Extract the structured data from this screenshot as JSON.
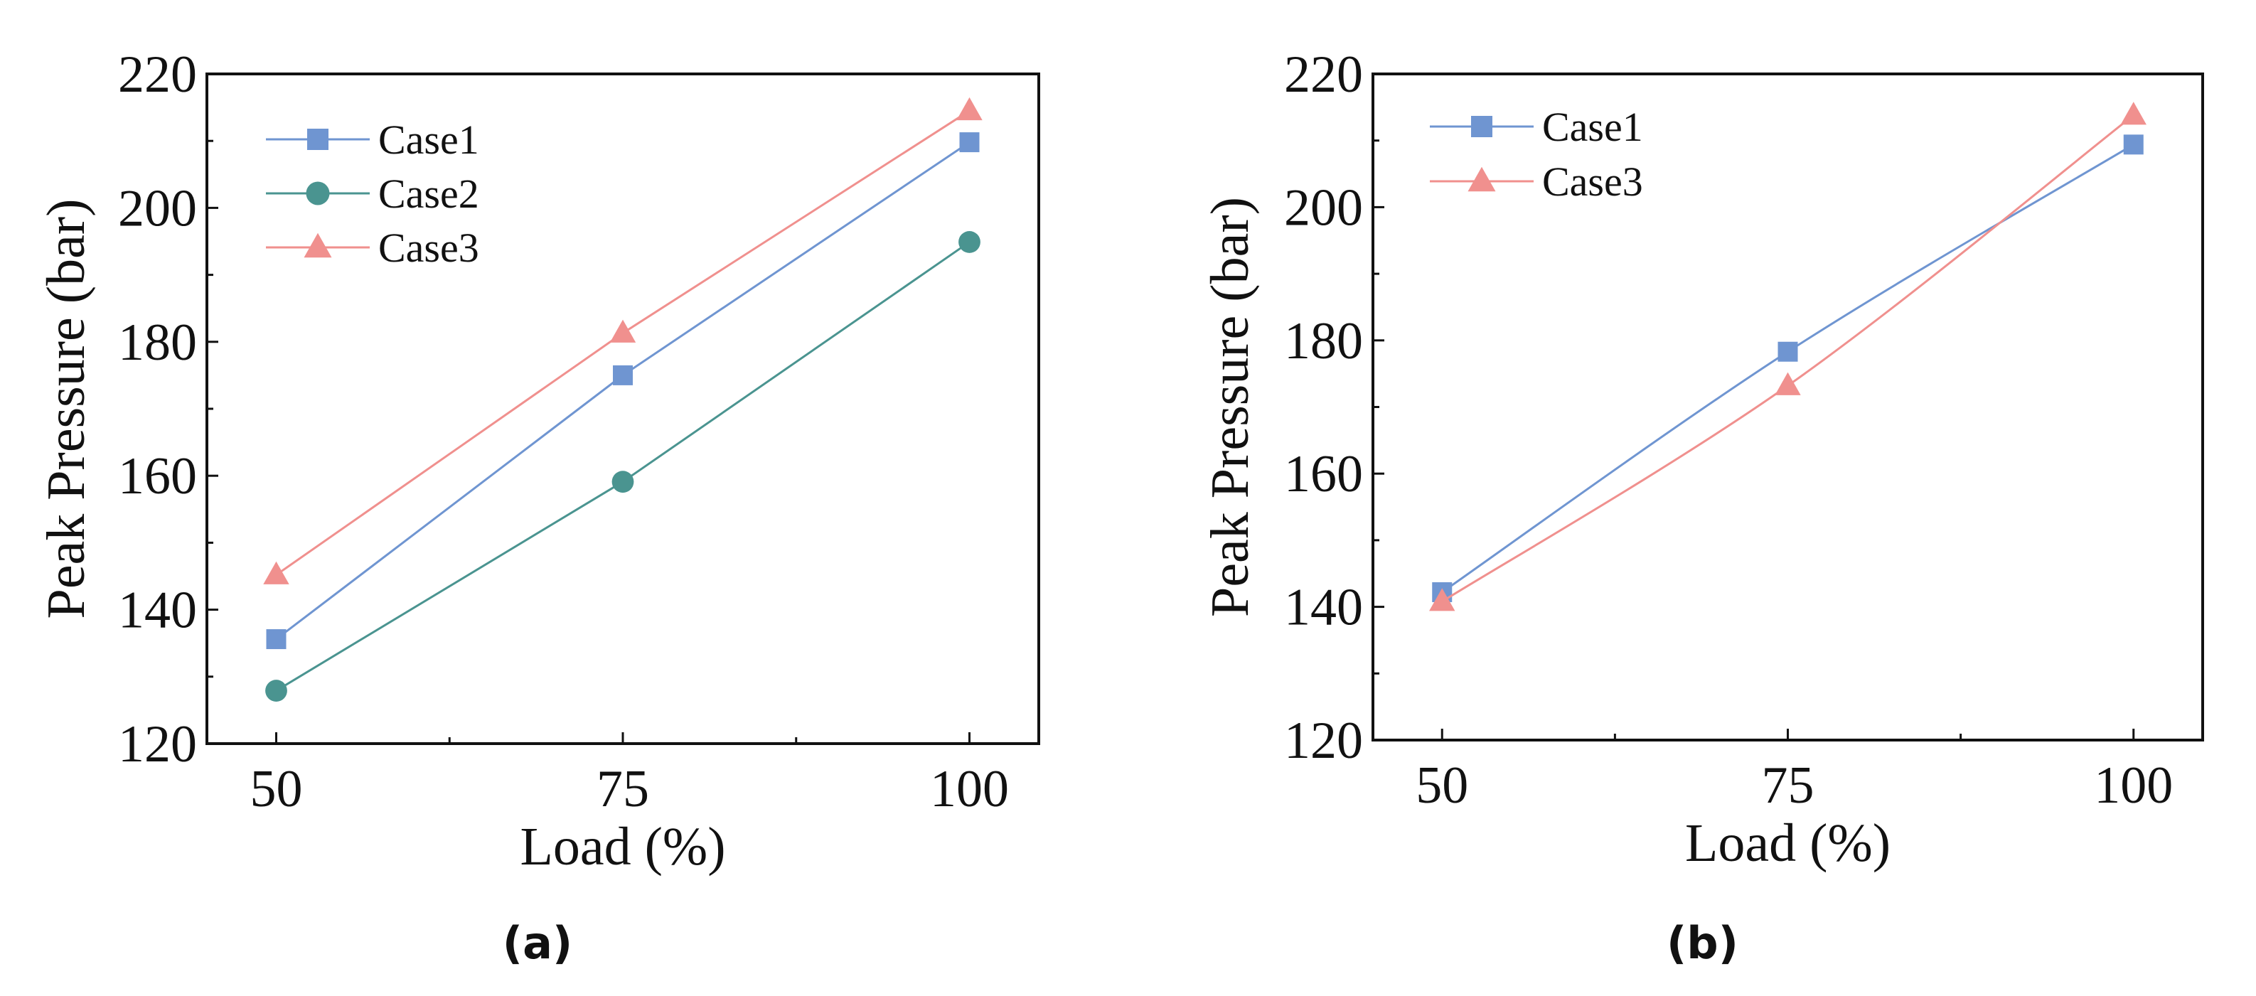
{
  "chart_data": [
    {
      "type": "line",
      "panel_label": "(a)",
      "xlabel": "Load (%)",
      "ylabel": "Peak Pressure (bar)",
      "x": [
        50,
        75,
        100
      ],
      "x_ticks": [
        "50",
        "75",
        "100"
      ],
      "y_ticks": [
        "120",
        "140",
        "160",
        "180",
        "200",
        "220"
      ],
      "xlim": [
        45,
        105
      ],
      "ylim": [
        120,
        220
      ],
      "legend_position": "top-left",
      "smooth": false,
      "series": [
        {
          "name": "Case1",
          "values": [
            135.6,
            175.0,
            209.8
          ],
          "color": "#6f95d1",
          "marker": "square"
        },
        {
          "name": "Case2",
          "values": [
            127.9,
            159.1,
            194.9
          ],
          "color": "#4a9490",
          "marker": "circle"
        },
        {
          "name": "Case3",
          "values": [
            145.2,
            181.3,
            214.5
          ],
          "color": "#f0908e",
          "marker": "triangle"
        }
      ]
    },
    {
      "type": "line",
      "panel_label": "(b)",
      "xlabel": "Load (%)",
      "ylabel": "Peak Pressure (bar)",
      "x": [
        50,
        75,
        100
      ],
      "x_ticks": [
        "50",
        "75",
        "100"
      ],
      "y_ticks": [
        "120",
        "140",
        "160",
        "180",
        "200",
        "220"
      ],
      "xlim": [
        45,
        105
      ],
      "ylim": [
        120,
        220
      ],
      "legend_position": "top-left",
      "smooth": true,
      "series": [
        {
          "name": "Case1",
          "values": [
            142.2,
            178.3,
            209.4
          ],
          "color": "#6f95d1",
          "marker": "square"
        },
        {
          "name": "Case3",
          "values": [
            140.8,
            173.2,
            213.8
          ],
          "color": "#f0908e",
          "marker": "triangle"
        }
      ]
    }
  ]
}
